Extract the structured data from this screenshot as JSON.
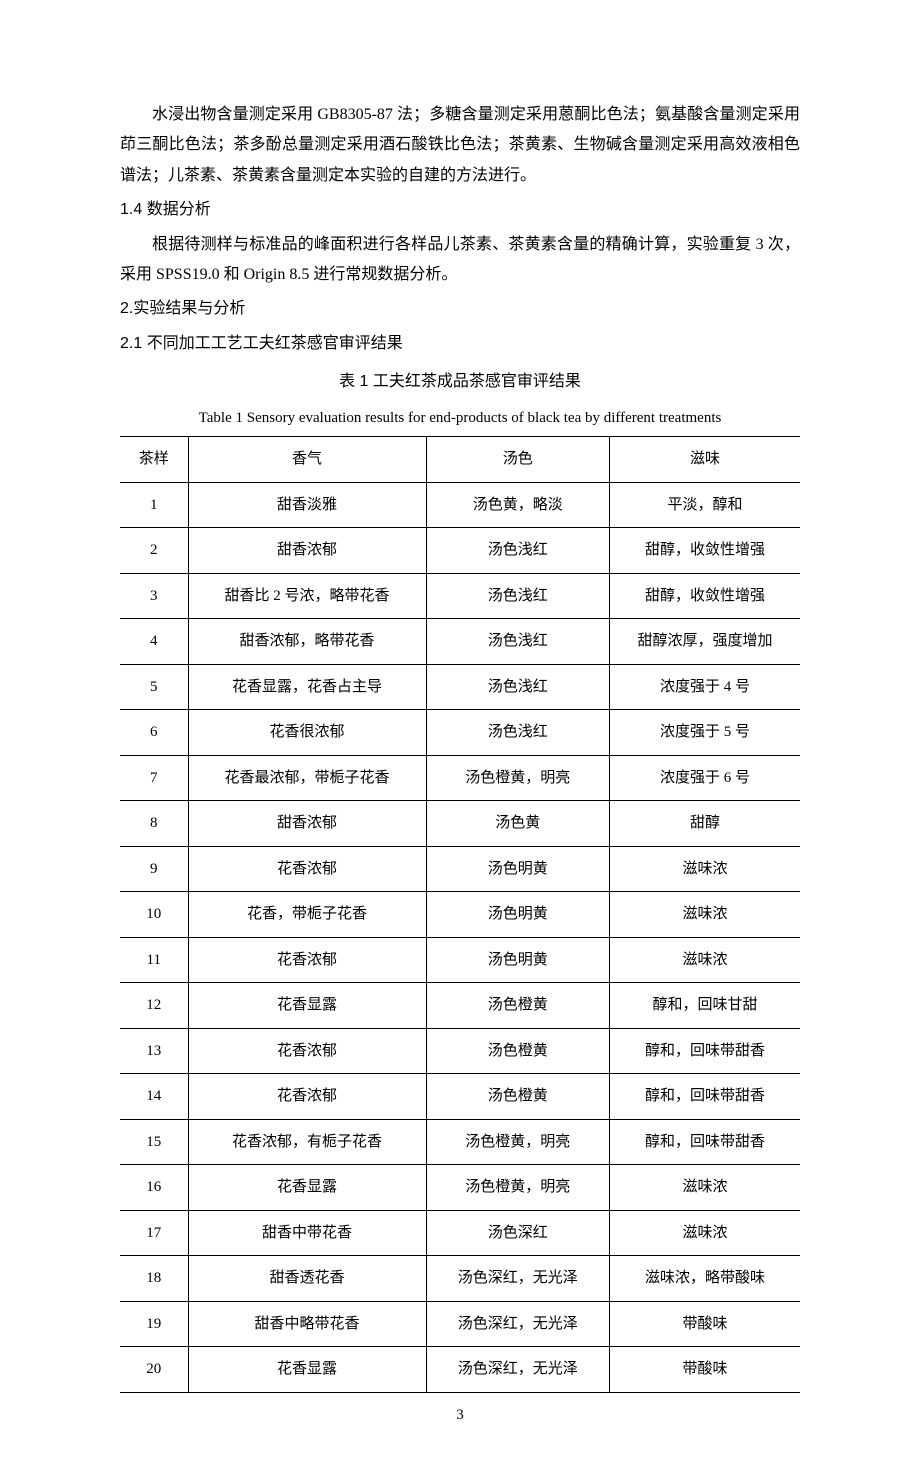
{
  "paragraphs": {
    "p1": "水浸出物含量测定采用 GB8305-87 法；多糖含量测定采用蒽酮比色法；氨基酸含量测定采用茚三酮比色法；茶多酚总量测定采用酒石酸铁比色法；茶黄素、生物碱含量测定采用高效液相色谱法；儿茶素、茶黄素含量测定本实验的自建的方法进行。",
    "p2": "根据待测样与标准品的峰面积进行各样品儿茶素、茶黄素含量的精确计算，实验重复 3 次，采用 SPSS19.0 和 Origin 8.5 进行常规数据分析。"
  },
  "headings": {
    "h14": "1.4 数据分析",
    "h2": "2.实验结果与分析",
    "h21": "2.1 不同加工工艺工夫红茶感官审评结果"
  },
  "table": {
    "title_cn": "表 1  工夫红茶成品茶感官审评结果",
    "title_en": "Table 1  Sensory evaluation results for end-products of black tea by different treatments",
    "headers": {
      "sample": "茶样",
      "aroma": "香气",
      "color": "汤色",
      "taste": "滋味"
    },
    "rows": [
      {
        "sample": "1",
        "aroma": "甜香淡雅",
        "color": "汤色黄，略淡",
        "taste": "平淡，醇和"
      },
      {
        "sample": "2",
        "aroma": "甜香浓郁",
        "color": "汤色浅红",
        "taste": "甜醇，收敛性增强"
      },
      {
        "sample": "3",
        "aroma": "甜香比 2 号浓，略带花香",
        "color": "汤色浅红",
        "taste": "甜醇，收敛性增强"
      },
      {
        "sample": "4",
        "aroma": "甜香浓郁，略带花香",
        "color": "汤色浅红",
        "taste": "甜醇浓厚，强度增加"
      },
      {
        "sample": "5",
        "aroma": "花香显露，花香占主导",
        "color": "汤色浅红",
        "taste": "浓度强于 4 号"
      },
      {
        "sample": "6",
        "aroma": "花香很浓郁",
        "color": "汤色浅红",
        "taste": "浓度强于 5 号"
      },
      {
        "sample": "7",
        "aroma": "花香最浓郁，带栀子花香",
        "color": "汤色橙黄，明亮",
        "taste": "浓度强于 6 号"
      },
      {
        "sample": "8",
        "aroma": "甜香浓郁",
        "color": "汤色黄",
        "taste": "甜醇"
      },
      {
        "sample": "9",
        "aroma": "花香浓郁",
        "color": "汤色明黄",
        "taste": "滋味浓"
      },
      {
        "sample": "10",
        "aroma": "花香，带栀子花香",
        "color": "汤色明黄",
        "taste": "滋味浓"
      },
      {
        "sample": "11",
        "aroma": "花香浓郁",
        "color": "汤色明黄",
        "taste": "滋味浓"
      },
      {
        "sample": "12",
        "aroma": "花香显露",
        "color": "汤色橙黄",
        "taste": "醇和，回味甘甜"
      },
      {
        "sample": "13",
        "aroma": "花香浓郁",
        "color": "汤色橙黄",
        "taste": "醇和，回味带甜香"
      },
      {
        "sample": "14",
        "aroma": "花香浓郁",
        "color": "汤色橙黄",
        "taste": "醇和，回味带甜香"
      },
      {
        "sample": "15",
        "aroma": "花香浓郁，有栀子花香",
        "color": "汤色橙黄，明亮",
        "taste": "醇和，回味带甜香"
      },
      {
        "sample": "16",
        "aroma": "花香显露",
        "color": "汤色橙黄，明亮",
        "taste": "滋味浓"
      },
      {
        "sample": "17",
        "aroma": "甜香中带花香",
        "color": "汤色深红",
        "taste": "滋味浓"
      },
      {
        "sample": "18",
        "aroma": "甜香透花香",
        "color": "汤色深红，无光泽",
        "taste": "滋味浓，略带酸味"
      },
      {
        "sample": "19",
        "aroma": "甜香中略带花香",
        "color": "汤色深红，无光泽",
        "taste": "带酸味"
      },
      {
        "sample": "20",
        "aroma": "花香显露",
        "color": "汤色深红，无光泽",
        "taste": "带酸味"
      }
    ]
  },
  "page_number": "3"
}
